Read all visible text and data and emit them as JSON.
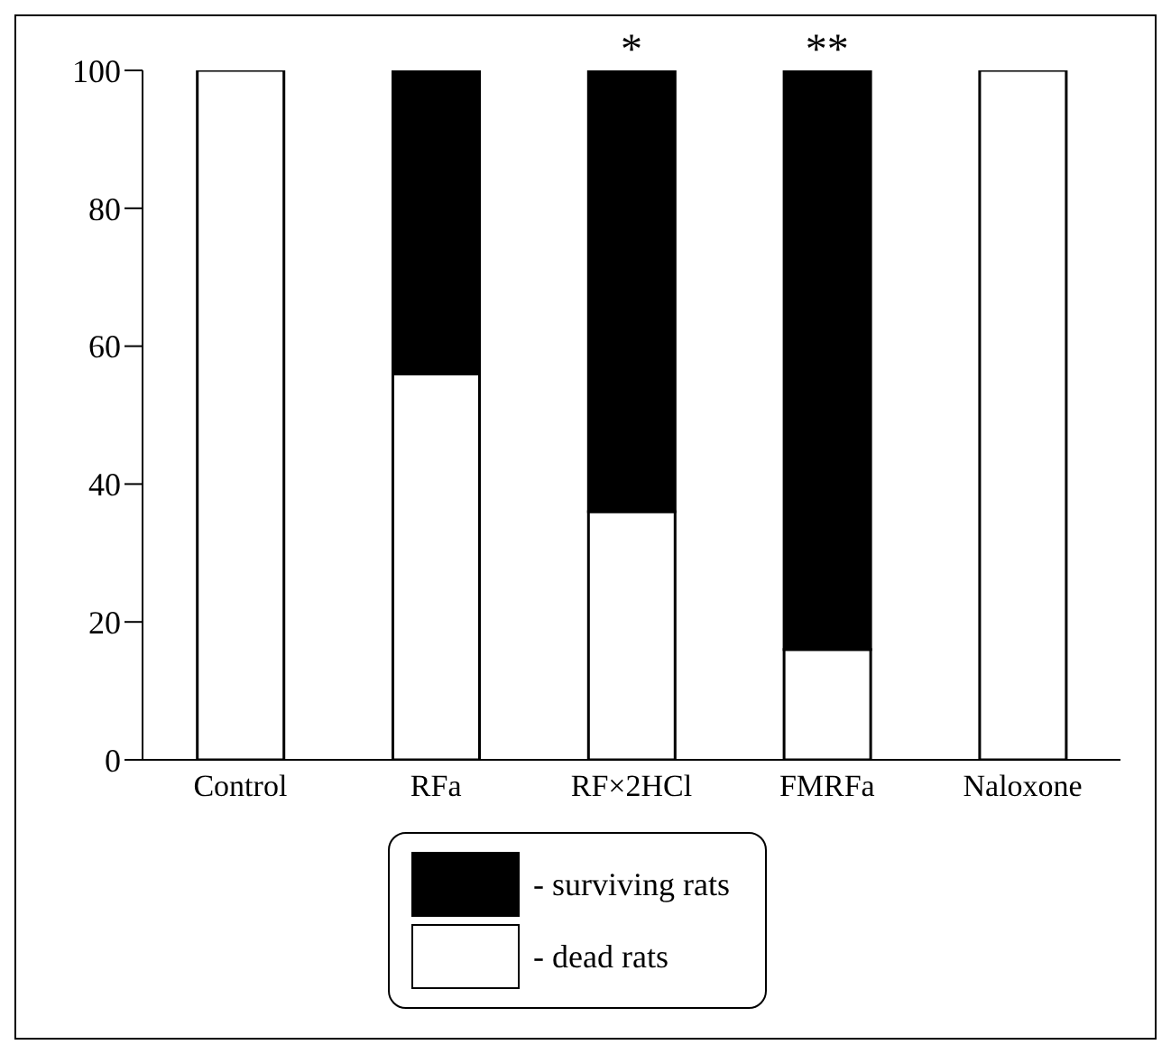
{
  "chart_data": {
    "type": "bar",
    "stacked": true,
    "categories": [
      "Control",
      "RFa",
      "RF×2HCl",
      "FMRFa",
      "Naloxone"
    ],
    "series": [
      {
        "name": "- dead rats",
        "color": "#ffffff",
        "values": [
          100,
          56,
          36,
          16,
          100
        ]
      },
      {
        "name": "- surviving rats",
        "color": "#000000",
        "values": [
          0,
          44,
          64,
          84,
          0
        ]
      }
    ],
    "ylim": [
      0,
      100
    ],
    "yticks": [
      0,
      20,
      40,
      60,
      80,
      100
    ],
    "grid": false,
    "legend": "bottom",
    "annotations": [
      {
        "text": "**",
        "x": "FMRFa",
        "y": 100
      },
      {
        "text": "*",
        "x": "RF×2HCl",
        "y": 100
      }
    ]
  }
}
